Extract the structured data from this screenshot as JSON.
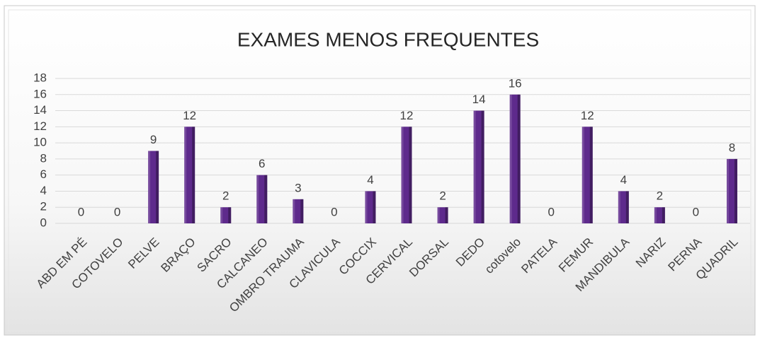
{
  "chart_data": {
    "type": "bar",
    "title": "EXAMES MENOS FREQUENTES",
    "categories": [
      "ABD EM PÉ",
      "COTOVELO",
      "PELVE",
      "BRAÇO",
      "SACRO",
      "CALCANEO",
      "OMBRO TRAUMA",
      "CLAVICULA",
      "COCCIX",
      "CERVICAL",
      "DORSAL",
      "DEDO",
      "cotovelo",
      "PATELA",
      "FEMUR",
      "MANDIBULA",
      "NARIZ",
      "PERNA",
      "QUADRIL"
    ],
    "values": [
      0,
      0,
      9,
      12,
      2,
      6,
      3,
      0,
      4,
      12,
      2,
      14,
      16,
      0,
      12,
      4,
      2,
      0,
      8
    ],
    "color": "#5e2a8c",
    "ylim": [
      0,
      18
    ],
    "yticks": [
      0,
      2,
      4,
      6,
      8,
      10,
      12,
      14,
      16,
      18
    ],
    "grid": true
  }
}
